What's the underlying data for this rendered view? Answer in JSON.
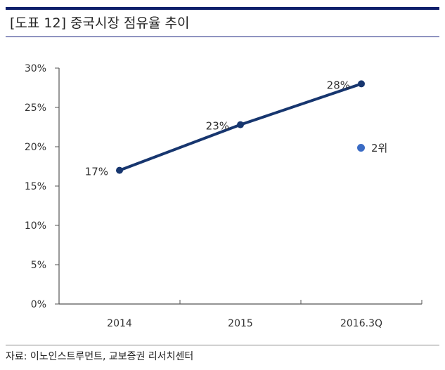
{
  "title": "[도표 12] 중국시장 점유율 추이",
  "source": "자료: 이노인스트루먼트, 교보증권 리서치센터",
  "colors": {
    "header_rule": "#0f1f6b",
    "line": "#17366f",
    "legend_dot": "#3a6bc4",
    "axis": "#555555"
  },
  "legend": {
    "label": "2위",
    "color": "#3a6bc4"
  },
  "chart_data": {
    "type": "line",
    "title": "",
    "xlabel": "",
    "ylabel": "",
    "categories": [
      "2014",
      "2015",
      "2016.3Q"
    ],
    "series": [
      {
        "values": [
          17,
          22.8,
          28
        ],
        "data_labels": [
          "17%",
          "23%",
          "28%"
        ],
        "color": "#17366f"
      }
    ],
    "ylim": [
      0,
      30
    ],
    "yticks": [
      "0%",
      "5%",
      "10%",
      "15%",
      "20%",
      "25%",
      "30%"
    ],
    "ytick_values": [
      0,
      5,
      10,
      15,
      20,
      25,
      30
    ],
    "grid": false,
    "legend_position": "right"
  }
}
